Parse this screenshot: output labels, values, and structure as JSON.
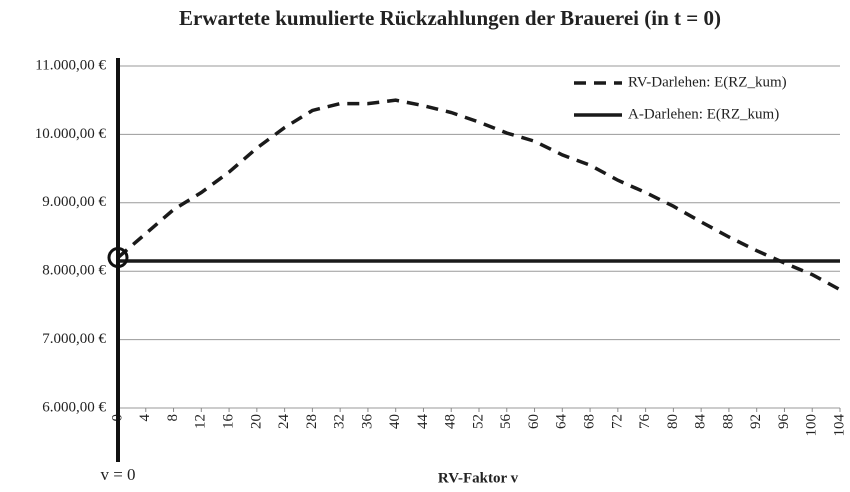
{
  "chart_data": {
    "type": "line",
    "title": "Erwartete kumulierte Rückzahlungen der Brauerei (in t = 0)",
    "x_label": "RV-Faktor v",
    "annotation": "v = 0",
    "x": [
      0,
      4,
      8,
      12,
      16,
      20,
      24,
      28,
      32,
      36,
      40,
      44,
      48,
      52,
      56,
      60,
      64,
      68,
      72,
      76,
      80,
      84,
      88,
      92,
      96,
      100,
      104
    ],
    "xlim": [
      0,
      104
    ],
    "xticks": [
      0,
      4,
      8,
      12,
      16,
      20,
      24,
      28,
      32,
      36,
      40,
      44,
      48,
      52,
      56,
      60,
      64,
      68,
      72,
      76,
      80,
      84,
      88,
      92,
      96,
      100,
      104
    ],
    "ylim": [
      6000,
      11000
    ],
    "yticks": [
      {
        "value": 6000,
        "label": "6.000,00 €"
      },
      {
        "value": 7000,
        "label": "7.000,00 €"
      },
      {
        "value": 8000,
        "label": "8.000,00 €"
      },
      {
        "value": 9000,
        "label": "9.000,00 €"
      },
      {
        "value": 10000,
        "label": "10.000,00 €"
      },
      {
        "value": 11000,
        "label": "11.000,00 €"
      }
    ],
    "grid": true,
    "legend": "upper right",
    "series": [
      {
        "name": "RV-Darlehen: E(RZ_kum)",
        "color": "#1a1a1a",
        "dashed": true,
        "values": [
          8200,
          8550,
          8900,
          9150,
          9450,
          9800,
          10100,
          10350,
          10450,
          10450,
          10500,
          10420,
          10320,
          10180,
          10020,
          9900,
          9700,
          9550,
          9330,
          9150,
          8950,
          8720,
          8500,
          8300,
          8120,
          7950,
          7730
        ]
      },
      {
        "name": "A-Darlehen: E(RZ_kum)",
        "color": "#1a1a1a",
        "dashed": false,
        "values": [
          8150,
          8150,
          8150,
          8150,
          8150,
          8150,
          8150,
          8150,
          8150,
          8150,
          8150,
          8150,
          8150,
          8150,
          8150,
          8150,
          8150,
          8150,
          8150,
          8150,
          8150,
          8150,
          8150,
          8150,
          8150,
          8150,
          8150
        ]
      }
    ]
  }
}
